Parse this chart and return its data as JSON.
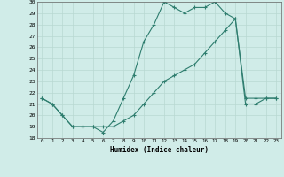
{
  "xlabel": "Humidex (Indice chaleur)",
  "x": [
    0,
    1,
    2,
    3,
    4,
    5,
    6,
    7,
    8,
    9,
    10,
    11,
    12,
    13,
    14,
    15,
    16,
    17,
    18,
    19,
    20,
    21,
    22,
    23
  ],
  "line1": [
    21.5,
    21.0,
    20.0,
    19.0,
    19.0,
    19.0,
    18.5,
    19.5,
    21.5,
    23.5,
    26.5,
    28.0,
    30.0,
    29.5,
    29.0,
    29.5,
    29.5,
    30.0,
    29.0,
    28.5,
    21.5,
    21.5,
    21.5,
    21.5
  ],
  "line2": [
    21.5,
    21.0,
    20.0,
    19.0,
    19.0,
    19.0,
    19.0,
    19.0,
    19.5,
    20.0,
    21.0,
    22.0,
    23.0,
    23.5,
    24.0,
    24.5,
    25.5,
    26.5,
    27.5,
    28.5,
    21.0,
    21.0,
    21.5,
    21.5
  ],
  "ylim": [
    18,
    30
  ],
  "xlim": [
    -0.5,
    23.5
  ],
  "yticks": [
    18,
    19,
    20,
    21,
    22,
    23,
    24,
    25,
    26,
    27,
    28,
    29,
    30
  ],
  "xticks": [
    0,
    1,
    2,
    3,
    4,
    5,
    6,
    7,
    8,
    9,
    10,
    11,
    12,
    13,
    14,
    15,
    16,
    17,
    18,
    19,
    20,
    21,
    22,
    23
  ],
  "line_color": "#2e7d6e",
  "bg_color": "#d0ece8",
  "grid_color": "#b8d8d2"
}
